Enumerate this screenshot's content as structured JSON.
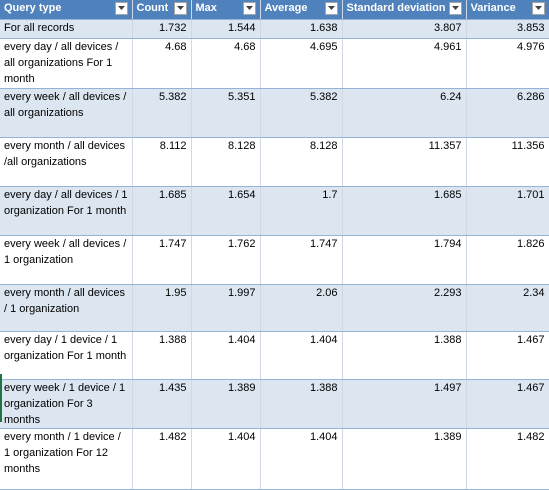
{
  "headers": [
    "Query type",
    "Count",
    "Max",
    "Average",
    "Standard deviation",
    "Variance"
  ],
  "rows": [
    [
      "For all records",
      "1.732",
      "1.544",
      "1.638",
      "3.807",
      "3.853"
    ],
    [
      "every day / all devices / all organizations For 1 month",
      "4.68",
      "4.68",
      "4.695",
      "4.961",
      "4.976"
    ],
    [
      "every week / all devices / all organizations",
      "5.382",
      "5.351",
      "5.382",
      "6.24",
      "6.286"
    ],
    [
      "every month / all devices /all organizations",
      "8.112",
      "8.128",
      "8.128",
      "11.357",
      "11.356"
    ],
    [
      "every day / all devices / 1 organization For 1 month",
      "1.685",
      "1.654",
      "1.7",
      "1.685",
      "1.701"
    ],
    [
      "every week / all devices / 1 organization",
      "1.747",
      "1.762",
      "1.747",
      "1.794",
      "1.826"
    ],
    [
      "every month / all devices / 1 organization",
      "1.95",
      "1.997",
      "2.06",
      "2.293",
      "2.34"
    ],
    [
      "every day / 1 device / 1 organization For 1 month",
      "1.388",
      "1.404",
      "1.404",
      "1.388",
      "1.467"
    ],
    [
      "every week / 1 device / 1 organization For 3 months",
      "1.435",
      "1.389",
      "1.388",
      "1.497",
      "1.467"
    ],
    [
      "every month / 1 device / 1 organization For 12 months",
      "1.482",
      "1.404",
      "1.404",
      "1.389",
      "1.482"
    ]
  ],
  "colors": {
    "header_bg": "#4f81bd",
    "band_bg": "#dce6f1",
    "border": "#95b3d7"
  },
  "icons": {
    "filter": "filter-dropdown-icon"
  }
}
